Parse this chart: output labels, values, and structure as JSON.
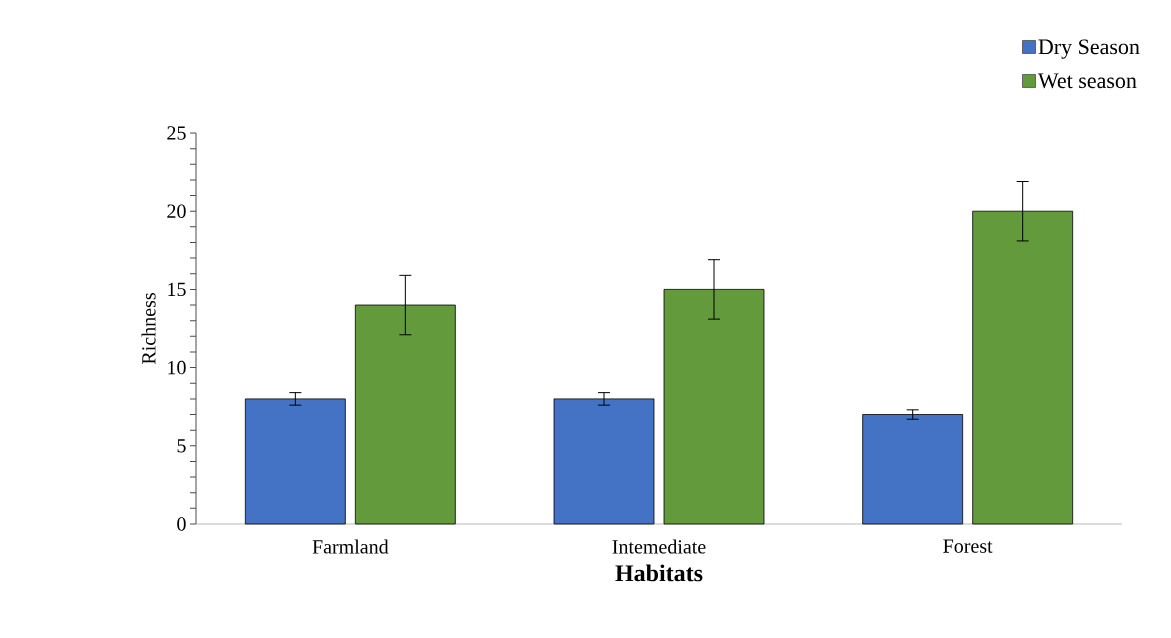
{
  "chart_data": {
    "type": "bar",
    "xlabel": "Habitats",
    "ylabel": "Richness",
    "categories": [
      "Farmland",
      "Intemediate",
      "Forest"
    ],
    "series": [
      {
        "name": "Dry Season",
        "color": "#4472c4",
        "values": [
          8,
          8,
          7
        ],
        "errors": [
          0.4,
          0.4,
          0.3
        ]
      },
      {
        "name": "Wet season",
        "color": "#629a3c",
        "values": [
          14,
          15,
          20
        ],
        "errors": [
          1.9,
          1.9,
          1.9
        ]
      }
    ],
    "ylim": [
      0,
      25
    ],
    "yticks": [
      0,
      5,
      10,
      15,
      20,
      25
    ],
    "grid": false,
    "legend": "top right"
  }
}
